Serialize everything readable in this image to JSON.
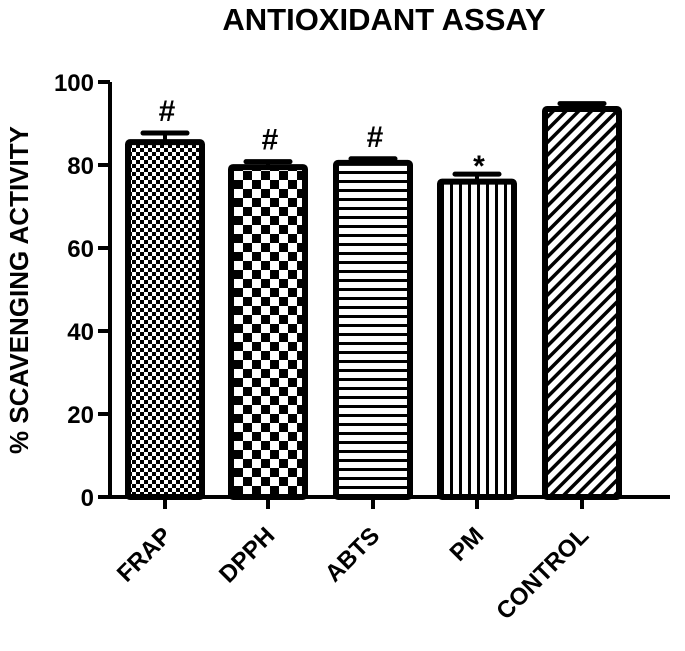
{
  "chart_data": {
    "type": "bar",
    "title": "ANTIOXIDANT ASSAY",
    "xlabel": "",
    "ylabel": "% SCAVENGING ACTIVITY",
    "ylim": [
      0,
      100
    ],
    "yticks": [
      0,
      20,
      40,
      60,
      80,
      100
    ],
    "grid": false,
    "legend": "none",
    "categories": [
      "FRAP",
      "DPPH",
      "ABTS",
      "PM",
      "CONTROL"
    ],
    "values": [
      85.5,
      79.5,
      80.5,
      76,
      93.5
    ],
    "error": [
      2.2,
      1.3,
      1.0,
      1.8,
      1.3
    ],
    "annotations": [
      "#",
      "#",
      "#",
      "*",
      ""
    ],
    "patterns": [
      "fine-checker",
      "coarse-checker",
      "horizontal-lines",
      "vertical-lines",
      "diagonal-hatch"
    ]
  },
  "colors": {
    "ink": "#000000",
    "background": "#ffffff"
  }
}
